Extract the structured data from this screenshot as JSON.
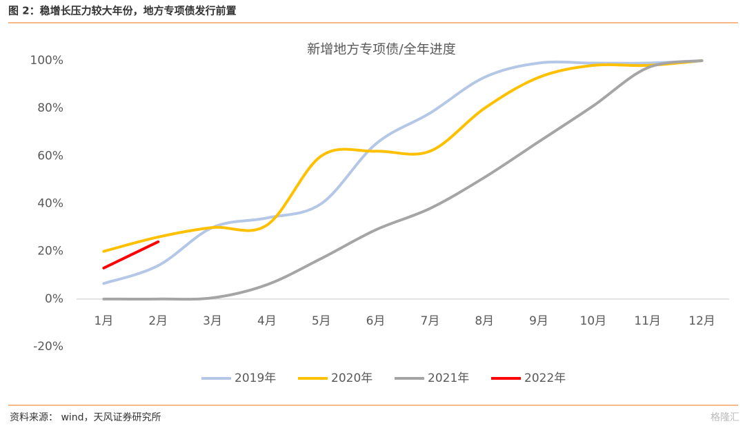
{
  "header": "图 2：稳增长压力较大年份，地方专项债发行前置",
  "footer": "资料来源： wind，天风证券研究所",
  "watermark": "格隆汇",
  "chart_data": {
    "type": "line",
    "title": "新增地方专项债/全年进度",
    "categories": [
      "1月",
      "2月",
      "3月",
      "4月",
      "5月",
      "6月",
      "7月",
      "8月",
      "9月",
      "10月",
      "11月",
      "12月"
    ],
    "series": [
      {
        "name": "2019年",
        "color": "#b4c7e7",
        "values": [
          6.5,
          14,
          30,
          34,
          40,
          65,
          78,
          93,
          99,
          99,
          99,
          100
        ]
      },
      {
        "name": "2020年",
        "color": "#ffc000",
        "values": [
          20,
          26,
          30,
          31,
          60,
          62,
          62,
          80,
          93,
          98,
          98,
          100
        ]
      },
      {
        "name": "2021年",
        "color": "#a5a5a5",
        "values": [
          0,
          0,
          0.5,
          6,
          17,
          29,
          38,
          51,
          66,
          81,
          97,
          100
        ]
      },
      {
        "name": "2022年",
        "color": "#ff0000",
        "values": [
          13,
          24,
          null,
          null,
          null,
          null,
          null,
          null,
          null,
          null,
          null,
          null
        ]
      }
    ],
    "ylim": [
      -20,
      100
    ],
    "yticks": [
      {
        "value": -20,
        "label": "-20%"
      },
      {
        "value": 0,
        "label": "0%"
      },
      {
        "value": 20,
        "label": "20%"
      },
      {
        "value": 40,
        "label": "40%"
      },
      {
        "value": 60,
        "label": "60%"
      },
      {
        "value": 80,
        "label": "80%"
      },
      {
        "value": 100,
        "label": "100%"
      }
    ],
    "grid": false,
    "legend": "bottom"
  }
}
